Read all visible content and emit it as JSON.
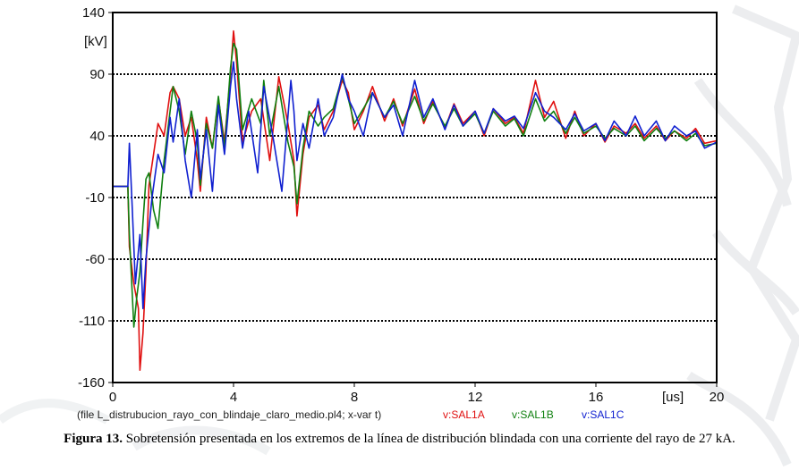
{
  "chart_data": {
    "type": "line",
    "ylabel": "[kV]",
    "xlabel": "[us]",
    "xlim": [
      0,
      20
    ],
    "ylim": [
      -160,
      140
    ],
    "xticks": [
      0,
      4,
      8,
      12,
      16,
      20
    ],
    "yticks": [
      140,
      90,
      40,
      -10,
      -60,
      -110,
      -160
    ],
    "gridlines_y": [
      90,
      40,
      -10,
      -60,
      -110
    ],
    "grid": "horizontal dotted",
    "file_note": "(file L_distrubucion_rayo_con_blindaje_claro_medio.pl4; x-var t)",
    "series": [
      {
        "name": "v:SAL1A",
        "color": "#e01010",
        "x": [
          0,
          0.5,
          0.55,
          0.7,
          0.85,
          0.9,
          1.0,
          1.1,
          1.2,
          1.35,
          1.5,
          1.7,
          1.9,
          2.0,
          2.2,
          2.4,
          2.6,
          2.8,
          2.9,
          3.1,
          3.3,
          3.5,
          3.7,
          3.9,
          4.0,
          4.1,
          4.3,
          4.6,
          4.9,
          5.2,
          5.5,
          5.8,
          6.0,
          6.1,
          6.3,
          6.5,
          6.8,
          7.0,
          7.3,
          7.6,
          7.8,
          8.0,
          8.3,
          8.6,
          9.0,
          9.3,
          9.6,
          10.0,
          10.3,
          10.6,
          11.0,
          11.3,
          11.6,
          12.0,
          12.3,
          12.6,
          13.0,
          13.3,
          13.6,
          14.0,
          14.3,
          14.6,
          15.0,
          15.3,
          15.6,
          16.0,
          16.3,
          16.6,
          17.0,
          17.3,
          17.6,
          18.0,
          18.3,
          18.6,
          19.0,
          19.3,
          19.6,
          20.0
        ],
        "values": [
          -1,
          -1,
          -50,
          -80,
          -100,
          -150,
          -120,
          -70,
          0,
          25,
          50,
          40,
          75,
          80,
          70,
          40,
          55,
          20,
          -5,
          55,
          30,
          70,
          35,
          90,
          125,
          100,
          35,
          60,
          70,
          20,
          88,
          50,
          20,
          -25,
          25,
          55,
          65,
          45,
          60,
          85,
          75,
          45,
          60,
          80,
          52,
          70,
          48,
          78,
          50,
          68,
          46,
          66,
          50,
          60,
          40,
          62,
          50,
          55,
          42,
          85,
          55,
          68,
          38,
          60,
          40,
          50,
          35,
          48,
          42,
          50,
          38,
          48,
          36,
          44,
          38,
          46,
          34,
          36
        ]
      },
      {
        "name": "v:SAL1B",
        "color": "#108010",
        "x": [
          0,
          0.5,
          0.55,
          0.7,
          0.8,
          0.9,
          1.0,
          1.1,
          1.2,
          1.35,
          1.5,
          1.7,
          1.9,
          2.0,
          2.2,
          2.4,
          2.6,
          2.8,
          2.9,
          3.1,
          3.3,
          3.5,
          3.7,
          3.9,
          4.0,
          4.1,
          4.3,
          4.6,
          4.9,
          5.0,
          5.2,
          5.5,
          5.8,
          6.0,
          6.1,
          6.3,
          6.5,
          6.8,
          7.0,
          7.3,
          7.6,
          7.8,
          8.0,
          8.3,
          8.6,
          9.0,
          9.3,
          9.6,
          10.0,
          10.3,
          10.6,
          11.0,
          11.3,
          11.6,
          12.0,
          12.3,
          12.6,
          13.0,
          13.3,
          13.6,
          14.0,
          14.3,
          14.6,
          15.0,
          15.3,
          15.6,
          16.0,
          16.3,
          16.6,
          17.0,
          17.3,
          17.6,
          18.0,
          18.3,
          18.6,
          19.0,
          19.3,
          19.6,
          20.0
        ],
        "values": [
          -1,
          -1,
          -40,
          -115,
          -90,
          -70,
          -30,
          5,
          10,
          -20,
          -35,
          20,
          60,
          80,
          60,
          25,
          60,
          35,
          0,
          50,
          30,
          72,
          30,
          95,
          115,
          110,
          45,
          70,
          50,
          85,
          40,
          80,
          35,
          15,
          -15,
          30,
          60,
          48,
          55,
          62,
          88,
          70,
          50,
          62,
          75,
          55,
          68,
          50,
          72,
          52,
          66,
          48,
          62,
          48,
          58,
          42,
          60,
          48,
          54,
          40,
          70,
          52,
          60,
          42,
          55,
          42,
          48,
          38,
          46,
          40,
          48,
          36,
          46,
          38,
          44,
          36,
          42,
          32,
          34
        ]
      },
      {
        "name": "v:SAL1C",
        "color": "#1020d0",
        "x": [
          0,
          0.5,
          0.55,
          0.65,
          0.75,
          0.9,
          1.0,
          1.1,
          1.3,
          1.5,
          1.7,
          1.9,
          2.0,
          2.2,
          2.4,
          2.6,
          2.8,
          2.9,
          3.1,
          3.3,
          3.5,
          3.7,
          3.9,
          4.0,
          4.1,
          4.3,
          4.5,
          4.8,
          5.0,
          5.3,
          5.6,
          5.9,
          6.0,
          6.1,
          6.3,
          6.5,
          6.8,
          7.0,
          7.3,
          7.6,
          7.8,
          8.0,
          8.3,
          8.6,
          9.0,
          9.3,
          9.6,
          10.0,
          10.3,
          10.6,
          11.0,
          11.3,
          11.6,
          12.0,
          12.3,
          12.6,
          13.0,
          13.3,
          13.6,
          14.0,
          14.3,
          14.6,
          15.0,
          15.3,
          15.6,
          16.0,
          16.3,
          16.6,
          17.0,
          17.3,
          17.6,
          18.0,
          18.3,
          18.6,
          19.0,
          19.3,
          19.6,
          20.0
        ],
        "values": [
          -1,
          -1,
          34,
          -20,
          -80,
          -40,
          -100,
          -60,
          -10,
          25,
          10,
          55,
          35,
          70,
          20,
          -10,
          45,
          5,
          45,
          -5,
          65,
          25,
          80,
          100,
          70,
          30,
          60,
          10,
          80,
          40,
          -5,
          85,
          60,
          20,
          50,
          30,
          70,
          40,
          55,
          90,
          70,
          60,
          40,
          75,
          55,
          65,
          40,
          85,
          55,
          70,
          45,
          65,
          48,
          60,
          42,
          62,
          52,
          56,
          46,
          75,
          60,
          55,
          45,
          58,
          44,
          50,
          36,
          52,
          40,
          56,
          40,
          52,
          36,
          48,
          40,
          44,
          30,
          35
        ]
      }
    ]
  },
  "caption": {
    "label": "Figura 13.",
    "text": " Sobretensión presentada en los extremos de la línea de distribución blindada con una corriente del rayo de 27 kA."
  },
  "watermark": {
    "color": "#cfd4da"
  }
}
